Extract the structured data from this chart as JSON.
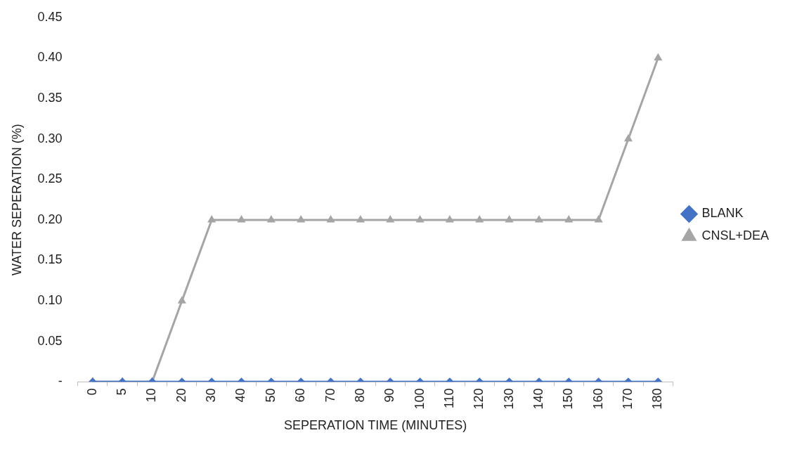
{
  "chart_data": {
    "type": "line",
    "xlabel": "SEPERATION TIME (MINUTES)",
    "ylabel": "WATER SEPERATION (%)",
    "categories": [
      "0",
      "5",
      "10",
      "20",
      "30",
      "40",
      "50",
      "60",
      "70",
      "80",
      "90",
      "100",
      "110",
      "120",
      "130",
      "140",
      "150",
      "160",
      "170",
      "180"
    ],
    "series": [
      {
        "name": "BLANK",
        "color": "#4472c4",
        "marker": "diamond",
        "values": [
          0,
          0,
          0,
          0,
          0,
          0,
          0,
          0,
          0,
          0,
          0,
          0,
          0,
          0,
          0,
          0,
          0,
          0,
          0,
          0
        ]
      },
      {
        "name": "CNSL+DEA",
        "color": "#a5a5a5",
        "marker": "triangle",
        "values": [
          0,
          0,
          0,
          0.1,
          0.2,
          0.2,
          0.2,
          0.2,
          0.2,
          0.2,
          0.2,
          0.2,
          0.2,
          0.2,
          0.2,
          0.2,
          0.2,
          0.2,
          0.3,
          0.4
        ]
      }
    ],
    "ylim": [
      0,
      0.45
    ],
    "yticks": [
      {
        "value": 0,
        "label": "-"
      },
      {
        "value": 0.05,
        "label": "0.05"
      },
      {
        "value": 0.1,
        "label": "0.10"
      },
      {
        "value": 0.15,
        "label": "0.15"
      },
      {
        "value": 0.2,
        "label": "0.20"
      },
      {
        "value": 0.25,
        "label": "0.25"
      },
      {
        "value": 0.3,
        "label": "0.30"
      },
      {
        "value": 0.35,
        "label": "0.35"
      },
      {
        "value": 0.4,
        "label": "0.40"
      },
      {
        "value": 0.45,
        "label": "0.45"
      }
    ],
    "grid": false,
    "legend": "right",
    "line_style": "solid"
  }
}
